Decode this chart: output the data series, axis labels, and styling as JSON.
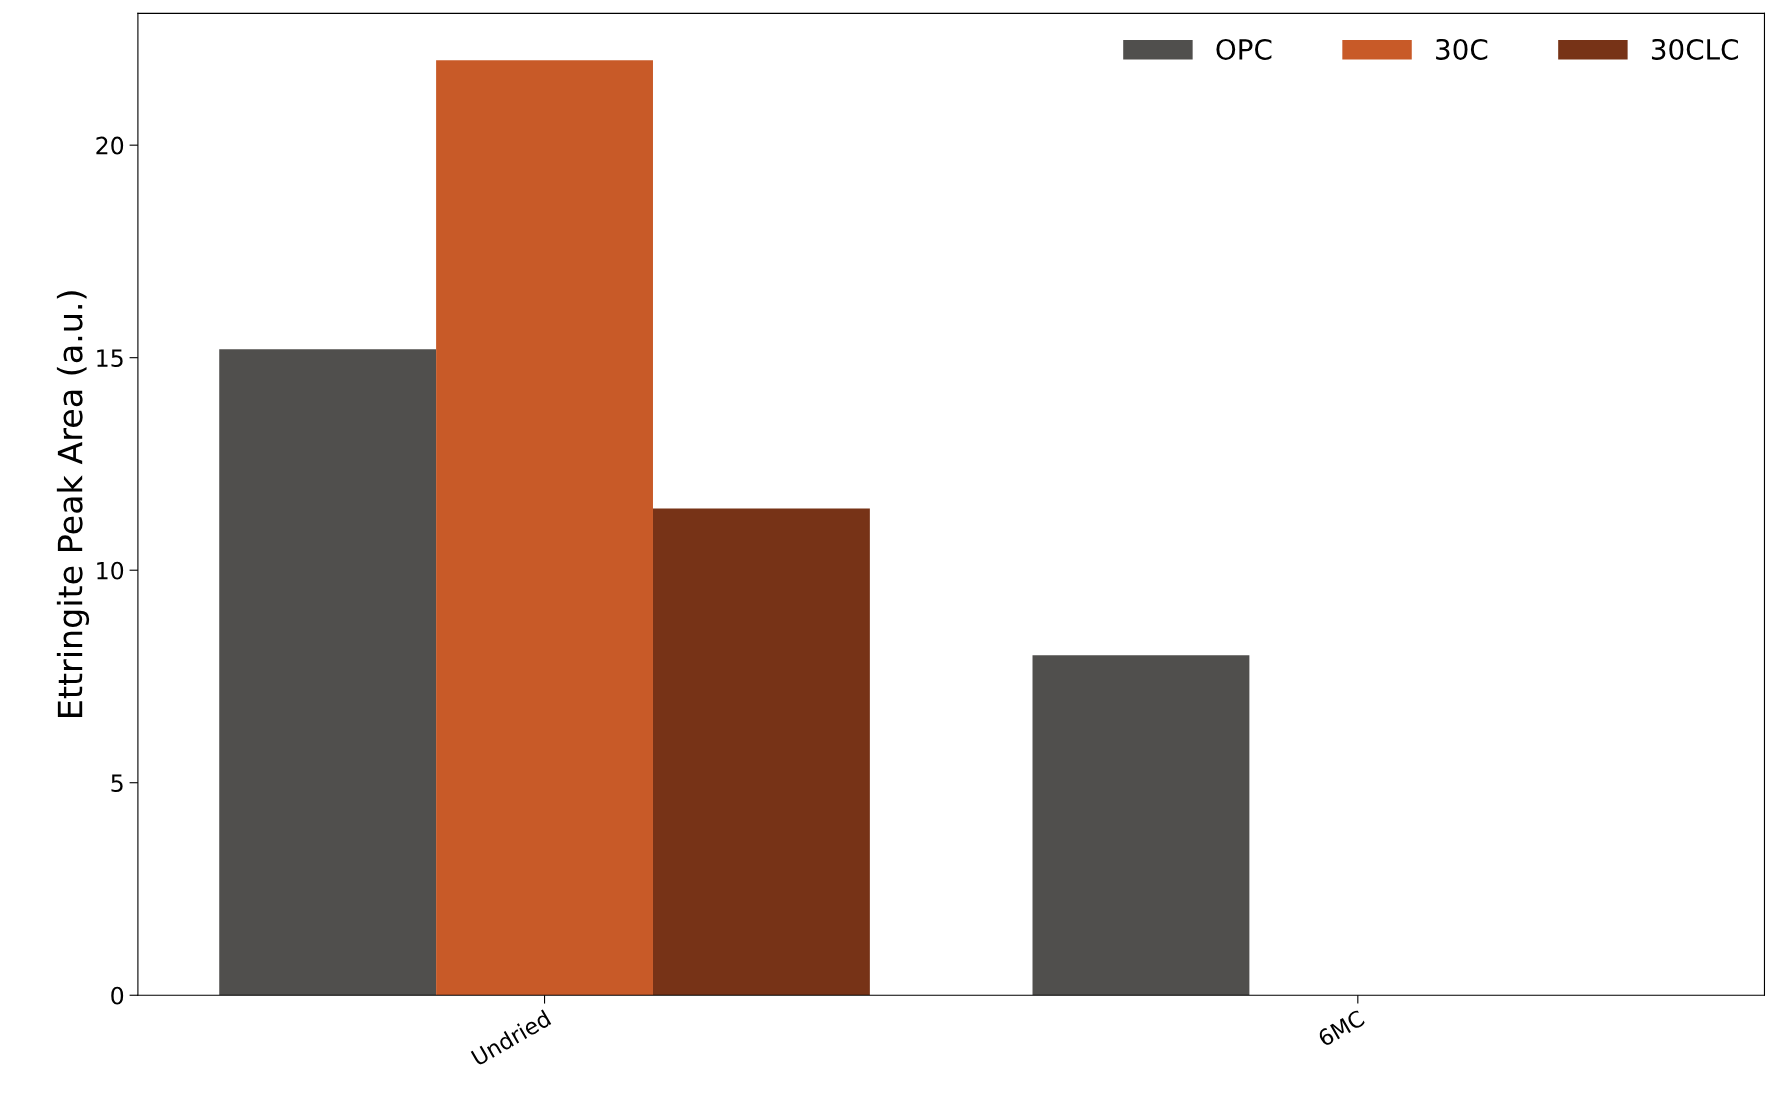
{
  "chart_data": {
    "type": "bar",
    "ylabel": "Ettringite Peak Area (a.u.)",
    "categories": [
      "Undried",
      "6MC"
    ],
    "series": [
      {
        "name": "OPC",
        "color": "#504f4d",
        "values": [
          15.2,
          8.0
        ]
      },
      {
        "name": "30C",
        "color": "#c85a28",
        "values": [
          22.0,
          null
        ]
      },
      {
        "name": "30CLC",
        "color": "#773317",
        "values": [
          11.45,
          null
        ]
      }
    ],
    "ylim": [
      0,
      23.1
    ],
    "yticks": [
      0,
      5,
      10,
      15,
      20
    ],
    "grid": false,
    "legend": "top right"
  }
}
